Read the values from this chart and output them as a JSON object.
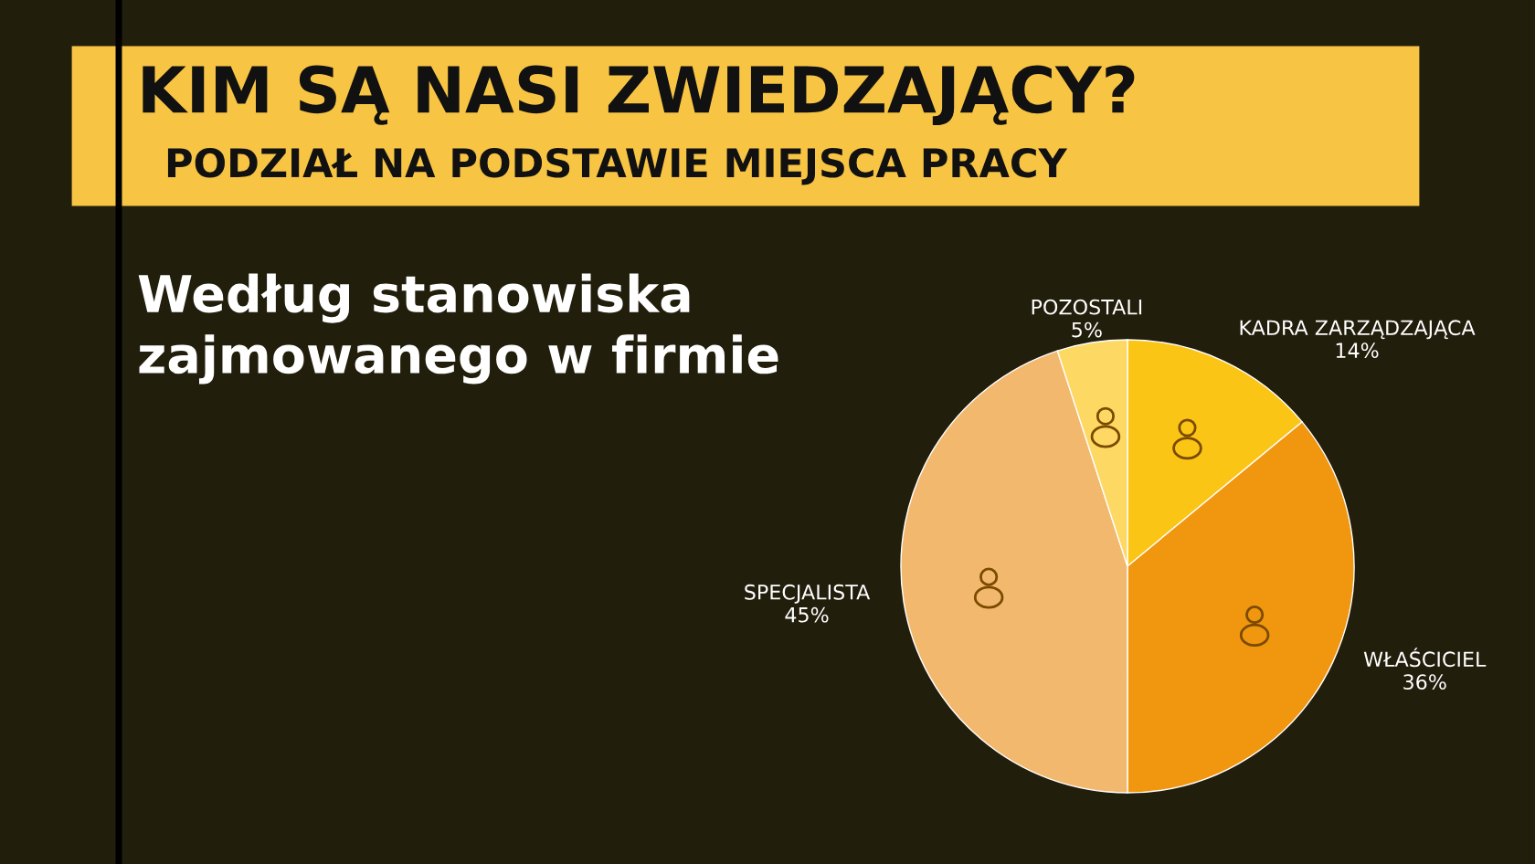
{
  "chart_data": {
    "type": "pie",
    "title": "KIM SĄ NASI ZWIEDZAJĄCY?",
    "subtitle": "PODZIAŁ NA PODSTAWIE MIEJSCA PRACY",
    "annotations": [
      "Według stanowiska\nzajmowanego w firmie"
    ],
    "categories": [
      "KADRA ZARZĄDZAJĄCA",
      "WŁAŚCICIEL",
      "SPECJALISTA",
      "POZOSTALI"
    ],
    "values": [
      14,
      36,
      45,
      5
    ],
    "value_labels": [
      "14%",
      "36%",
      "45%",
      "5%"
    ],
    "colors": [
      "#fbc516",
      "#f0960f",
      "#f2b86e",
      "#fdd862"
    ]
  }
}
